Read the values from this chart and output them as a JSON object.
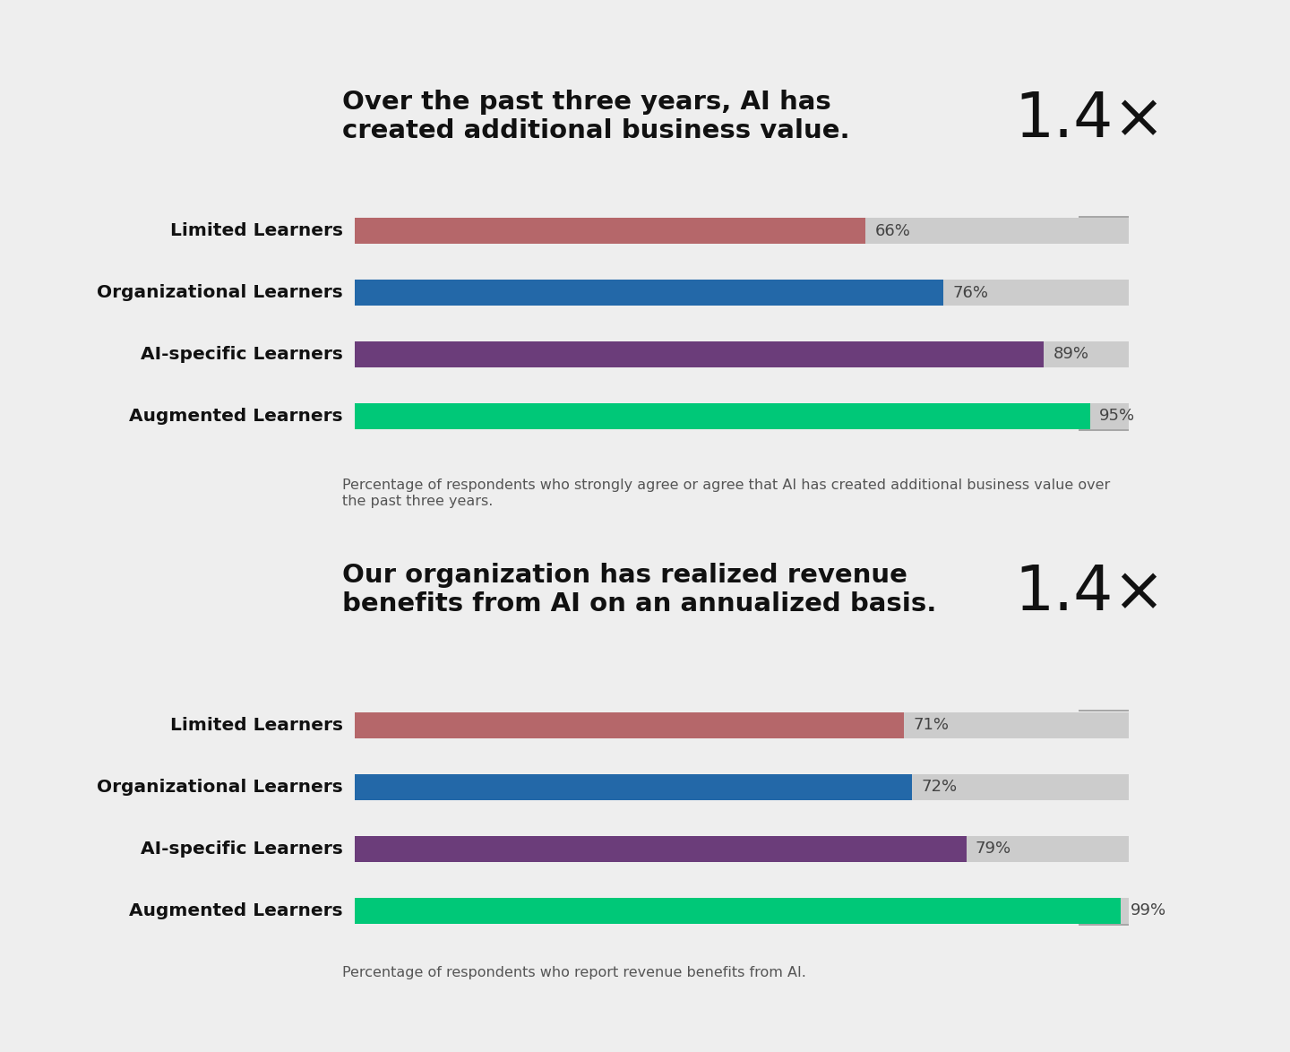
{
  "chart1": {
    "title_line1": "Over the past three years, AI has",
    "title_line2": "created additional business value.",
    "multiplier": "1.4×",
    "categories": [
      "Limited Learners",
      "Organizational Learners",
      "AI-specific Learners",
      "Augmented Learners"
    ],
    "values": [
      66,
      76,
      89,
      95
    ],
    "bar_colors": [
      "#b5676a",
      "#2368a8",
      "#6b3d7a",
      "#00c878"
    ],
    "footnote": "Percentage of respondents who strongly agree or agree that AI has created additional business value over\nthe past three years."
  },
  "chart2": {
    "title_line1": "Our organization has realized revenue",
    "title_line2": "benefits from AI on an annualized basis.",
    "multiplier": "1.4×",
    "categories": [
      "Limited Learners",
      "Organizational Learners",
      "AI-specific Learners",
      "Augmented Learners"
    ],
    "values": [
      71,
      72,
      79,
      99
    ],
    "bar_colors": [
      "#b5676a",
      "#2368a8",
      "#6b3d7a",
      "#00c878"
    ],
    "footnote": "Percentage of respondents who report revenue benefits from AI."
  },
  "bg_color": "#eeeeee",
  "bar_bg_color": "#cccccc",
  "max_val": 100,
  "title_fontsize": 21,
  "value_fontsize": 13,
  "footnote_fontsize": 11.5,
  "multiplier_fontsize": 50,
  "category_fontsize": 14.5
}
